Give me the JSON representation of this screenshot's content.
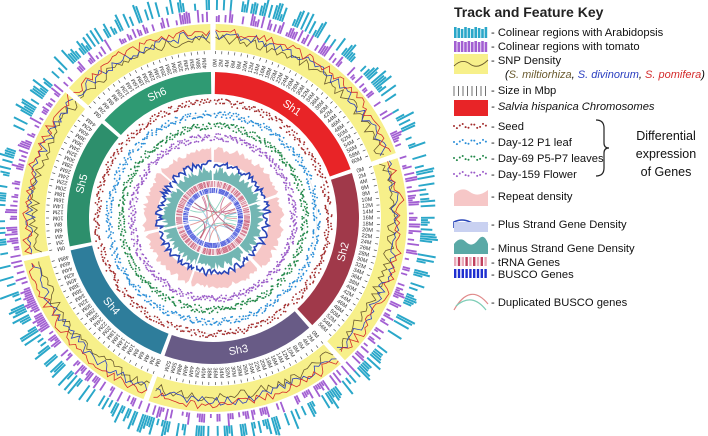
{
  "key": {
    "title": "Track and Feature Key",
    "items": [
      {
        "label": "- Colinear regions with Arabidopsis",
        "swatch": "colinear-arabidopsis"
      },
      {
        "label": "- Colinear regions with tomato",
        "swatch": "colinear-tomato"
      },
      {
        "label": "- SNP Density",
        "swatch": "snp-density"
      },
      {
        "label": "- Size in Mbp",
        "swatch": "size"
      },
      {
        "label": "- Salvia hispanica Chromosomes",
        "swatch": "chromosomes"
      },
      {
        "label": "- Seed",
        "swatch": "seed"
      },
      {
        "label": "- Day-12 P1 leaf",
        "swatch": "day12"
      },
      {
        "label": "- Day-69 P5-P7 leaves",
        "swatch": "day69"
      },
      {
        "label": "- Day-159 Flower",
        "swatch": "day159"
      },
      {
        "label": "- Repeat density",
        "swatch": "repeat"
      },
      {
        "label": "- Plus Strand Gene Density",
        "swatch": "plus"
      },
      {
        "label": "- Minus Strand Gene Density",
        "swatch": "minus"
      },
      {
        "label": "- tRNA Genes",
        "swatch": "trna"
      },
      {
        "label": "- BUSCO Genes",
        "swatch": "busco"
      },
      {
        "label": "- Duplicated BUSCO genes",
        "swatch": "dup"
      }
    ],
    "species": {
      "open": "(",
      "s1": "S. miltiorhiza",
      "sep1": ", ",
      "s2": "S. divinorum",
      "sep2": ", ",
      "s3": "S. pomifera",
      "close": ")"
    },
    "brace_text": [
      "Differential",
      "expression",
      "of Genes"
    ]
  },
  "colors": {
    "snp_band": "#f7f08a",
    "chromosomes": [
      "#e82427",
      "#a0394a",
      "#685b86",
      "#2e7d9b",
      "#2d8f6c",
      "#2f9a73"
    ],
    "arabidopsis": "#2aa7c9",
    "tomato": "#a25fd2",
    "seed": "#a32d2d",
    "day12": "#2b8fd8",
    "day69": "#23894a",
    "day159": "#9b5cc9",
    "repeat": "#f6c7c7",
    "plus": "#2a46b8",
    "minus": "#5aa9a6",
    "trna": "#c0415f",
    "busco": "#1e2fd0"
  },
  "chromosomes": [
    {
      "name": "Sh1",
      "size": 62,
      "ticks": [
        "0M",
        "2M",
        "4M",
        "6M",
        "8M",
        "10M",
        "12M",
        "14M",
        "16M",
        "18M",
        "20M",
        "22M",
        "24M",
        "26M",
        "28M",
        "30M",
        "32M",
        "34M",
        "36M",
        "38M",
        "40M",
        "42M",
        "44M",
        "46M",
        "48M",
        "50M",
        "52M",
        "54M",
        "56M",
        "58M",
        "60M"
      ]
    },
    {
      "name": "Sh2",
      "size": 58,
      "ticks": [
        "0M",
        "2M",
        "4M",
        "6M",
        "8M",
        "10M",
        "12M",
        "14M",
        "16M",
        "18M",
        "20M",
        "22M",
        "24M",
        "26M",
        "28M",
        "30M",
        "32M",
        "34M",
        "36M",
        "38M",
        "40M",
        "42M",
        "44M",
        "46M",
        "48M",
        "50M",
        "52M",
        "54M",
        "56M"
      ]
    },
    {
      "name": "Sh3",
      "size": 54,
      "ticks": [
        "0M",
        "2M",
        "4M",
        "6M",
        "8M",
        "10M",
        "12M",
        "14M",
        "16M",
        "18M",
        "20M",
        "22M",
        "24M",
        "26M",
        "28M",
        "30M",
        "32M",
        "34M",
        "36M",
        "38M",
        "40M",
        "42M",
        "44M",
        "46M",
        "48M",
        "50M",
        "52M"
      ]
    },
    {
      "name": "Sh4",
      "size": 50,
      "ticks": [
        "0M",
        "2M",
        "4M",
        "6M",
        "8M",
        "10M",
        "12M",
        "14M",
        "16M",
        "18M",
        "20M",
        "22M",
        "24M",
        "26M",
        "28M",
        "30M",
        "32M",
        "34M",
        "36M",
        "38M",
        "40M",
        "42M",
        "44M",
        "46M",
        "48M"
      ]
    },
    {
      "name": "Sh5",
      "size": 46,
      "ticks": [
        "0M",
        "2M",
        "4M",
        "6M",
        "8M",
        "10M",
        "12M",
        "14M",
        "16M",
        "18M",
        "20M",
        "22M",
        "24M",
        "26M",
        "28M",
        "30M",
        "32M",
        "34M",
        "36M",
        "38M",
        "40M",
        "42M",
        "44M"
      ]
    },
    {
      "name": "Sh6",
      "size": 42,
      "ticks": [
        "0M",
        "2M",
        "4M",
        "6M",
        "8M",
        "10M",
        "12M",
        "14M",
        "16M",
        "18M",
        "20M",
        "22M",
        "24M",
        "26M",
        "28M",
        "30M",
        "32M",
        "34M",
        "36M",
        "38M",
        "40M"
      ]
    }
  ]
}
